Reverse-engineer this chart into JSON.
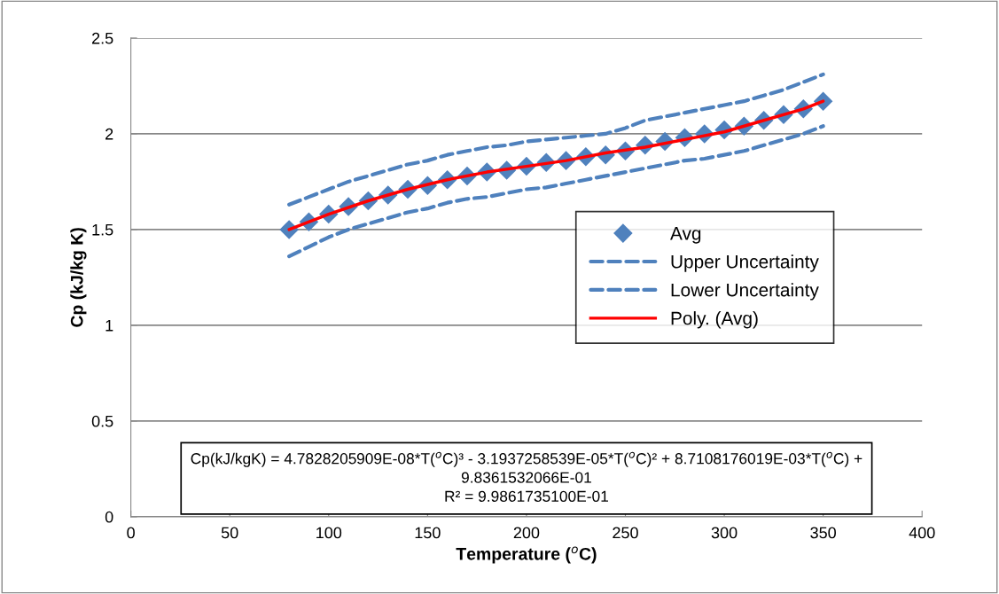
{
  "chart_data": {
    "type": "scatter",
    "xlabel": "Temperature ($^{o}$C)",
    "ylabel": "Cp (kJ/kg K)",
    "xlim": [
      0,
      400
    ],
    "xticks": [
      0,
      50,
      100,
      150,
      200,
      250,
      300,
      350,
      400
    ],
    "ylim": [
      0,
      2.5
    ],
    "yticks": [
      0,
      0.5,
      1,
      1.5,
      2,
      2.5
    ],
    "grid": "y",
    "legend": "center right",
    "x": [
      80,
      90,
      100,
      110,
      120,
      130,
      140,
      150,
      160,
      170,
      180,
      190,
      200,
      210,
      220,
      230,
      240,
      250,
      260,
      270,
      280,
      290,
      300,
      310,
      320,
      330,
      340,
      350
    ],
    "series": [
      {
        "name": "Avg",
        "marker": "diamond",
        "color": "#4f81bd",
        "values": [
          1.5,
          1.54,
          1.58,
          1.62,
          1.65,
          1.68,
          1.71,
          1.73,
          1.76,
          1.78,
          1.8,
          1.81,
          1.83,
          1.85,
          1.86,
          1.88,
          1.89,
          1.91,
          1.94,
          1.96,
          1.98,
          2.0,
          2.02,
          2.04,
          2.07,
          2.1,
          2.13,
          2.17
        ]
      },
      {
        "name": "Upper Uncertainty",
        "type": "line",
        "line_style": "dashed",
        "color": "#4f81bd",
        "values": [
          1.63,
          1.67,
          1.71,
          1.75,
          1.78,
          1.81,
          1.84,
          1.86,
          1.89,
          1.91,
          1.93,
          1.94,
          1.96,
          1.97,
          1.98,
          1.99,
          2.0,
          2.03,
          2.07,
          2.09,
          2.11,
          2.13,
          2.15,
          2.17,
          2.2,
          2.23,
          2.27,
          2.31
        ]
      },
      {
        "name": "Lower Uncertainty",
        "type": "line",
        "line_style": "dashed",
        "color": "#4f81bd",
        "values": [
          1.36,
          1.41,
          1.46,
          1.5,
          1.53,
          1.56,
          1.59,
          1.61,
          1.64,
          1.66,
          1.67,
          1.69,
          1.71,
          1.72,
          1.74,
          1.76,
          1.78,
          1.8,
          1.82,
          1.84,
          1.86,
          1.87,
          1.89,
          1.91,
          1.94,
          1.97,
          2.0,
          2.04
        ]
      },
      {
        "name": "Poly. (Avg)",
        "type": "line",
        "line_style": "solid",
        "color": "#ff0000",
        "x": [
          80,
          100,
          120,
          140,
          160,
          180,
          200,
          220,
          240,
          260,
          280,
          300,
          320,
          340,
          350
        ],
        "values": [
          1.5,
          1.58,
          1.65,
          1.71,
          1.76,
          1.8,
          1.83,
          1.86,
          1.9,
          1.93,
          1.97,
          2.01,
          2.07,
          2.13,
          2.17
        ]
      }
    ],
    "annotations": [
      "Cp(kJ/kgK) = 4.7828205909E-08*T($^{o}$C)³ - 3.1937258539E-05*T($^{o}$C)² + 8.7108176019E-03*T($^{o}$C) + 9.8361532066E-01",
      "R² = 9.9861735100E-01"
    ]
  }
}
